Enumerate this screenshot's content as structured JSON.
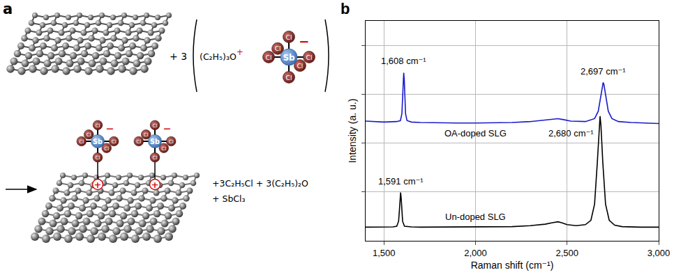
{
  "panel_a": {
    "letter": "a",
    "reactant_coefficient": "+ 3",
    "cation": "(C₂H₅)₃O",
    "cation_charge": "+",
    "anion_center": "Sb",
    "ligand": "Cl",
    "anion_charge": "−",
    "hole_charge": "+",
    "products": [
      "+3C₂H₅Cl + 3(C₂H₅)₂O",
      "+ SbCl₃"
    ]
  },
  "panel_b_letter": "b",
  "chart_data": {
    "type": "line",
    "x_label": "Raman shift (cm⁻¹)",
    "y_label": "Intensity (a. u.)",
    "xlim": [
      1400,
      3000
    ],
    "xticks": [
      {
        "value": 1500,
        "label": "1,500"
      },
      {
        "value": 2000,
        "label": "2,000"
      },
      {
        "value": 2500,
        "label": "2,500"
      },
      {
        "value": 3000,
        "label": "3,000"
      }
    ],
    "ylim": [
      0,
      4.5
    ],
    "yticks": [
      1,
      2,
      3,
      4
    ],
    "tick_labels": "x",
    "grid": true,
    "series": [
      {
        "name": "OA-doped SLG",
        "color": "#1a1acc",
        "x": [
          1400,
          1500,
          1570,
          1590,
          1598,
          1602,
          1605,
          1608,
          1611,
          1614,
          1618,
          1626,
          1650,
          1700,
          1800,
          1900,
          2000,
          2100,
          2200,
          2300,
          2380,
          2420,
          2450,
          2480,
          2520,
          2600,
          2650,
          2670,
          2685,
          2693,
          2697,
          2701,
          2710,
          2725,
          2745,
          2780,
          2850,
          2900,
          3000
        ],
        "values": [
          2.45,
          2.43,
          2.44,
          2.46,
          2.6,
          2.95,
          3.3,
          3.44,
          3.3,
          2.95,
          2.6,
          2.46,
          2.43,
          2.42,
          2.41,
          2.41,
          2.41,
          2.41,
          2.42,
          2.44,
          2.47,
          2.49,
          2.5,
          2.48,
          2.45,
          2.44,
          2.5,
          2.65,
          3.0,
          3.2,
          3.24,
          3.2,
          3.0,
          2.65,
          2.5,
          2.44,
          2.42,
          2.41,
          2.4
        ]
      },
      {
        "name": "Un-doped SLG",
        "color": "#000000",
        "x": [
          1400,
          1450,
          1500,
          1550,
          1570,
          1580,
          1585,
          1588,
          1591,
          1594,
          1597,
          1602,
          1612,
          1650,
          1700,
          1800,
          1900,
          2000,
          2100,
          2200,
          2300,
          2380,
          2420,
          2450,
          2470,
          2500,
          2550,
          2600,
          2630,
          2650,
          2665,
          2675,
          2680,
          2685,
          2695,
          2710,
          2730,
          2760,
          2800,
          2900,
          3000
        ],
        "values": [
          0.28,
          0.28,
          0.28,
          0.285,
          0.3,
          0.4,
          0.65,
          0.88,
          0.99,
          0.88,
          0.65,
          0.4,
          0.3,
          0.285,
          0.28,
          0.28,
          0.28,
          0.28,
          0.28,
          0.29,
          0.31,
          0.34,
          0.37,
          0.39,
          0.37,
          0.33,
          0.31,
          0.33,
          0.42,
          0.75,
          1.6,
          2.35,
          2.55,
          2.35,
          1.6,
          0.75,
          0.42,
          0.32,
          0.29,
          0.28,
          0.28
        ]
      }
    ],
    "annotations": [
      {
        "text": "1,608 cm⁻¹",
        "x": 1608,
        "y": 3.68
      },
      {
        "text": "2,697 cm⁻¹",
        "x": 2697,
        "y": 3.47
      },
      {
        "text": "1,591 cm⁻¹",
        "x": 1591,
        "y": 1.22
      },
      {
        "text": "2,680 cm⁻¹",
        "x": 2520,
        "y": 2.2
      }
    ]
  }
}
